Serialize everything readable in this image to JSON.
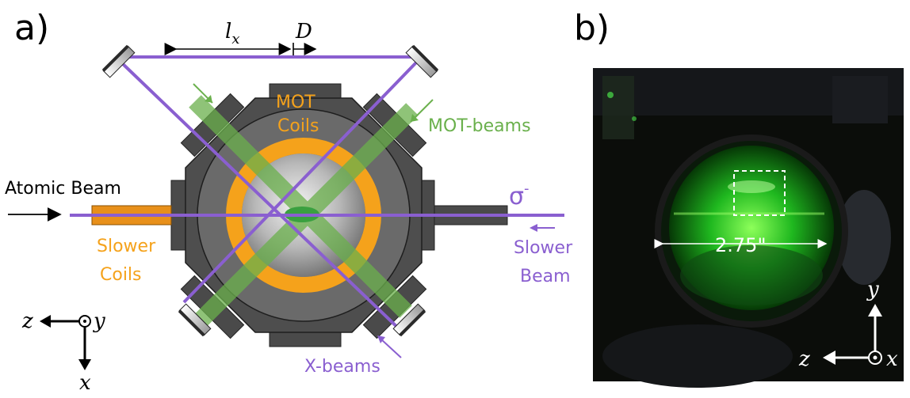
{
  "panel_a": {
    "panel_label": "a)",
    "dim_lx": "l",
    "dim_lx_sub": "x",
    "dim_d": "D",
    "mot_label_1": "MOT",
    "mot_label_2": "Coils",
    "mot_beams_label": "MOT-beams",
    "atomic_beam_label": "Atomic Beam",
    "slower_coils_1": "Slower",
    "slower_coils_2": "Coils",
    "sigma_label": "σ",
    "sigma_sup": "-",
    "slower_beam_1": "Slower",
    "slower_beam_2": "Beam",
    "x_beams_label": "X-beams",
    "axis_z": "z",
    "axis_y": "y",
    "axis_x": "x"
  },
  "panel_b": {
    "panel_label": "b)",
    "dimension_label": "2.75\"",
    "axis_y": "y",
    "axis_z": "z",
    "axis_x": "x"
  },
  "colors": {
    "purple": "#8a5fd0",
    "green": "#6ab04c",
    "orange": "#f5a21b",
    "chamber_dark": "#4a4a4a",
    "chamber_mid": "#646464"
  }
}
